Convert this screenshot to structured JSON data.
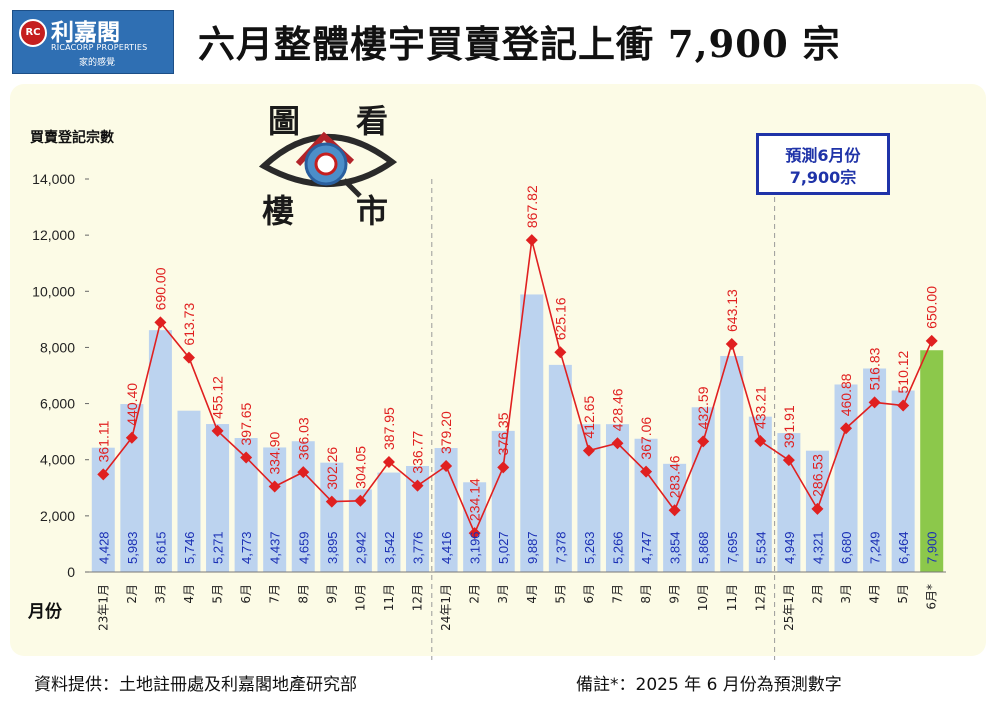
{
  "header": {
    "logo_name": "利嘉閣",
    "logo_en": "RICACORP PROPERTIES",
    "logo_slogan": "家的感覺",
    "title": "六月整體樓宇買賣登記上衝 7,900 宗"
  },
  "emblem": {
    "chars": [
      "圖",
      "看",
      "樓",
      "市"
    ],
    "icon": "eye-house-icon"
  },
  "forecast_box": {
    "line1": "預測6月份",
    "line2": "7,900宗"
  },
  "footer": {
    "source": "資料提供：土地註冊處及利嘉閣地產研究部",
    "note": "備註*：2025 年 6 月份為預測數字"
  },
  "colors": {
    "bar": "#bcd3ef",
    "bar_forecast": "#8cc84b",
    "line": "#e02020",
    "value_text": "#1a2fb5",
    "forecast_box": "#1f33a8"
  },
  "chart_data": {
    "type": "bar",
    "ylabel": "買賣登記宗數",
    "xlabel": "月份",
    "ylim": [
      0,
      14000
    ],
    "yticks": [
      "0",
      "2,000",
      "4,000",
      "6,000",
      "8,000",
      "10,000",
      "12,000",
      "14,000"
    ],
    "categories": [
      "23年1月",
      "2月",
      "3月",
      "4月",
      "5月",
      "6月",
      "7月",
      "8月",
      "9月",
      "10月",
      "11月",
      "12月",
      "24年1月",
      "2月",
      "3月",
      "4月",
      "5月",
      "6月",
      "7月",
      "8月",
      "9月",
      "10月",
      "11月",
      "12月",
      "25年1月",
      "2月",
      "3月",
      "4月",
      "5月",
      "6月*"
    ],
    "series": [
      {
        "type": "bar",
        "values": [
          4428,
          5983,
          8615,
          5746,
          5271,
          4773,
          4437,
          4659,
          3895,
          2942,
          3542,
          3776,
          4416,
          3196,
          5027,
          9887,
          7378,
          5263,
          5266,
          4747,
          3854,
          5868,
          7695,
          5534,
          4949,
          4321,
          6680,
          7249,
          6464,
          7900
        ],
        "labels": [
          "4,428",
          "5,983",
          "8,615",
          "5,746",
          "5,271",
          "4,773",
          "4,437",
          "4,659",
          "3,895",
          "2,942",
          "3,542",
          "3,776",
          "4,416",
          "3,196",
          "5,027",
          "9,887",
          "7,378",
          "5,263",
          "5,266",
          "4,747",
          "3,854",
          "5,868",
          "7,695",
          "5,534",
          "4,949",
          "4,321",
          "6,680",
          "7,249",
          "6,464",
          "7,900"
        ]
      },
      {
        "type": "line",
        "values": [
          361.11,
          440.4,
          690.0,
          613.73,
          455.12,
          397.65,
          334.9,
          366.03,
          302.26,
          304.05,
          387.95,
          336.77,
          379.2,
          234.14,
          376.35,
          867.82,
          625.16,
          412.65,
          428.46,
          367.06,
          283.46,
          432.59,
          643.13,
          433.21,
          391.91,
          286.53,
          460.88,
          516.83,
          510.12,
          650.0
        ],
        "labels": [
          "361.11",
          "440.40",
          "690.00",
          "613.73",
          "455.12",
          "397.65",
          "334.90",
          "366.03",
          "302.26",
          "304.05",
          "387.95",
          "336.77",
          "379.20",
          "234.14",
          "376.35",
          "867.82",
          "625.16",
          "412.65",
          "428.46",
          "367.06",
          "283.46",
          "432.59",
          "643.13",
          "433.21",
          "391.91",
          "286.53",
          "460.88",
          "516.83",
          "510.12",
          "650.00"
        ]
      }
    ],
    "forecast_index": 29,
    "year_dividers_after": [
      11,
      23
    ]
  }
}
